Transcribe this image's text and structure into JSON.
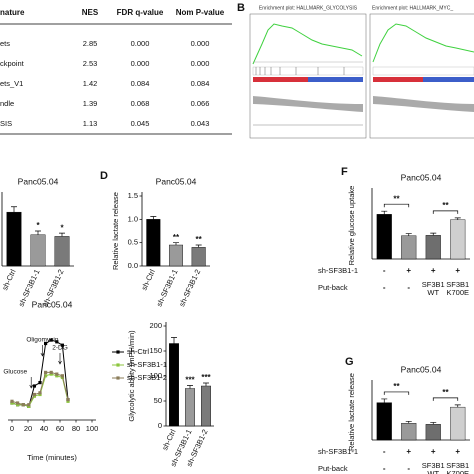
{
  "table": {
    "columns": [
      "nature",
      "NES",
      "FDR q-value",
      "Nom P-value"
    ],
    "rows": [
      [
        "ets",
        "2.85",
        "0.000",
        "0.000"
      ],
      [
        "ckpoint",
        "2.53",
        "0.000",
        "0.000"
      ],
      [
        "ets_V1",
        "1.42",
        "0.084",
        "0.084"
      ],
      [
        "ndle",
        "1.39",
        "0.068",
        "0.066"
      ],
      [
        "SIS",
        "1.13",
        "0.045",
        "0.043"
      ]
    ]
  },
  "gsea": {
    "letter": "B",
    "plots": [
      {
        "title": "Enrichment plot: HALLMARK_GLYCOLYSIS"
      },
      {
        "title": "Enrichment plot: HALLMARK_MYC_"
      }
    ]
  },
  "glucose_bars": {
    "title": "Panc05.04",
    "categories": [
      "sh-Ctrl",
      "sh-SF3B1-1",
      "sh-SF3B1-2"
    ],
    "values": [
      1.0,
      0.58,
      0.55
    ],
    "errors": [
      0.1,
      0.07,
      0.06
    ],
    "colors": [
      "#000000",
      "#9a9a9a",
      "#7a7a7a"
    ],
    "significance": [
      null,
      "*",
      "*"
    ],
    "ylim": [
      0,
      1.3
    ]
  },
  "lactate_bars": {
    "letter": "D",
    "title": "Panc05.04",
    "ylabel": "Relative lactate release",
    "categories": [
      "sh-Ctrl",
      "sh-SF3B1-1",
      "sh-SF3B1-2"
    ],
    "values": [
      1.0,
      0.45,
      0.4
    ],
    "errors": [
      0.06,
      0.05,
      0.05
    ],
    "colors": [
      "#000000",
      "#9a9a9a",
      "#7a7a7a"
    ],
    "significance": [
      null,
      "**",
      "**"
    ],
    "ylim": [
      0,
      1.5
    ],
    "yticks": [
      {
        "value": 0,
        "label": "0.0"
      },
      0.5,
      {
        "value": 1,
        "label": "1.0"
      },
      1.5
    ]
  },
  "uptake_putback": {
    "letter": "F",
    "title": "Panc05.04",
    "ylabel": "Relative glucose uptake",
    "values": [
      1.0,
      0.52,
      0.53,
      0.88
    ],
    "errors": [
      0.07,
      0.05,
      0.05,
      0.04
    ],
    "colors": [
      "#000000",
      "#9a9a9a",
      "#6e6e6e",
      "#cfcfcf"
    ],
    "brackets": [
      "**",
      "**"
    ],
    "ylim": [
      0,
      1.5
    ],
    "rows": [
      {
        "name": "sh-SF3B1-1",
        "values": [
          "-",
          "+",
          "+",
          "+"
        ]
      },
      {
        "name": "Put-back",
        "values": [
          "-",
          "-",
          "SF3B1 WT",
          "SF3B1 K700E"
        ]
      }
    ]
  },
  "ecar": {
    "type": "line",
    "title": "Panc05.04",
    "xlabel": "Time (minutes)",
    "x": [
      0,
      7,
      14,
      21,
      28,
      35,
      42,
      49,
      56,
      63,
      70
    ],
    "xlim": [
      -5,
      105
    ],
    "xticks": [
      0,
      20,
      40,
      60,
      80,
      100
    ],
    "ylim": [
      0,
      60
    ],
    "series": [
      {
        "name": "sh-Ctrl",
        "color": "#000000",
        "values": [
          10,
          9,
          9,
          8,
          20,
          22,
          45,
          47,
          46,
          44,
          12
        ]
      },
      {
        "name": "sh-SF3B1-1",
        "color": "#8dc63f",
        "values": [
          10,
          9,
          9,
          8,
          14,
          15,
          26,
          27,
          26,
          25,
          11
        ]
      },
      {
        "name": "sh-SF3B1-2",
        "color": "#8b7d5a",
        "values": [
          11,
          10,
          9,
          9,
          15,
          16,
          28,
          28,
          27,
          26,
          12
        ]
      }
    ],
    "annotations": [
      {
        "text": "Glucose",
        "x": 24
      },
      {
        "text": "Oligomycin",
        "x": 38
      },
      {
        "text": "2-DG",
        "x": 60
      }
    ]
  },
  "glyco_bars": {
    "ylabel": "Glycolytic ability (mPH/min)",
    "categories": [
      "sh-Ctrl",
      "sh-SF3B1-1",
      "sh-SF3B1-2"
    ],
    "values": [
      165,
      75,
      80
    ],
    "errors": [
      12,
      6,
      6
    ],
    "colors": [
      "#000000",
      "#9a9a9a",
      "#7a7a7a"
    ],
    "significance": [
      null,
      "***",
      "***"
    ],
    "ylim": [
      0,
      200
    ],
    "yticks": [
      0,
      50,
      100,
      150,
      200
    ]
  },
  "lactate_putback": {
    "letter": "G",
    "title": "Panc05.04",
    "ylabel": "Relative lactate release",
    "values": [
      1.0,
      0.45,
      0.42,
      0.88
    ],
    "errors": [
      0.1,
      0.05,
      0.05,
      0.06
    ],
    "colors": [
      "#000000",
      "#9a9a9a",
      "#6e6e6e",
      "#cfcfcf"
    ],
    "brackets": [
      "**",
      "**"
    ],
    "ylim": [
      0,
      1.5
    ],
    "rows": [
      {
        "name": "sh-SF3B1-1",
        "values": [
          "-",
          "+",
          "+",
          "+"
        ]
      },
      {
        "name": "Put-back",
        "values": [
          "-",
          "-",
          "SF3B1 WT",
          "SF3B1 K700E"
        ]
      }
    ]
  }
}
